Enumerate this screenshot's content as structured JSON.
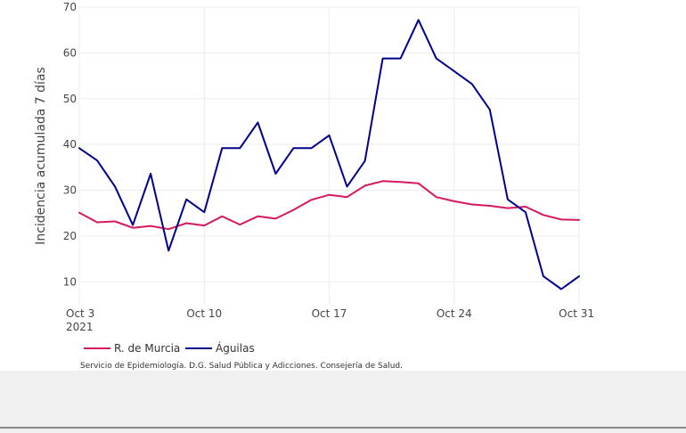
{
  "chart_data": {
    "type": "line",
    "title": "",
    "ylabel": "Incidencia acumulada 7 días",
    "xlabel": "",
    "ylim": [
      5,
      70
    ],
    "y_ticks": [
      10,
      20,
      30,
      40,
      50,
      60,
      70
    ],
    "x_start": "2021-10-03",
    "x_end": "2021-10-31",
    "x_ticks": [
      {
        "date": "2021-10-03",
        "label": "Oct 3",
        "sublabel": "2021"
      },
      {
        "date": "2021-10-10",
        "label": "Oct 10",
        "sublabel": ""
      },
      {
        "date": "2021-10-17",
        "label": "Oct 17",
        "sublabel": ""
      },
      {
        "date": "2021-10-24",
        "label": "Oct 24",
        "sublabel": ""
      },
      {
        "date": "2021-10-31",
        "label": "Oct 31",
        "sublabel": ""
      }
    ],
    "grid": true,
    "legend_position": "bottom-left",
    "x": [
      "2021-10-03",
      "2021-10-04",
      "2021-10-05",
      "2021-10-06",
      "2021-10-07",
      "2021-10-08",
      "2021-10-09",
      "2021-10-10",
      "2021-10-11",
      "2021-10-12",
      "2021-10-13",
      "2021-10-14",
      "2021-10-15",
      "2021-10-16",
      "2021-10-17",
      "2021-10-18",
      "2021-10-19",
      "2021-10-20",
      "2021-10-21",
      "2021-10-22",
      "2021-10-23",
      "2021-10-24",
      "2021-10-25",
      "2021-10-26",
      "2021-10-27",
      "2021-10-28",
      "2021-10-29",
      "2021-10-30",
      "2021-10-31"
    ],
    "series": [
      {
        "name": "R. de Murcia",
        "color": "#d6195f",
        "values": [
          25.1,
          23.0,
          23.2,
          21.8,
          22.2,
          21.5,
          22.8,
          22.3,
          24.3,
          22.5,
          24.3,
          23.8,
          25.7,
          27.9,
          29.0,
          28.5,
          31.0,
          32.0,
          31.8,
          31.5,
          28.5,
          27.6,
          26.9,
          26.6,
          26.1,
          26.4,
          24.6,
          23.6,
          23.5
        ]
      },
      {
        "name": "Águilas",
        "color": "#00008b",
        "values": [
          39.2,
          36.5,
          30.8,
          22.4,
          33.6,
          16.8,
          28.0,
          25.2,
          39.2,
          39.2,
          44.8,
          33.6,
          39.2,
          39.2,
          42.0,
          30.8,
          36.4,
          58.8,
          58.8,
          67.2,
          58.8,
          56.0,
          53.2,
          47.6,
          28.0,
          25.2,
          11.2,
          8.4,
          11.2
        ]
      }
    ]
  },
  "source": "Servicio de Epidemiología. D.G. Salud Pública y Adicciones. Consejería de Salud."
}
